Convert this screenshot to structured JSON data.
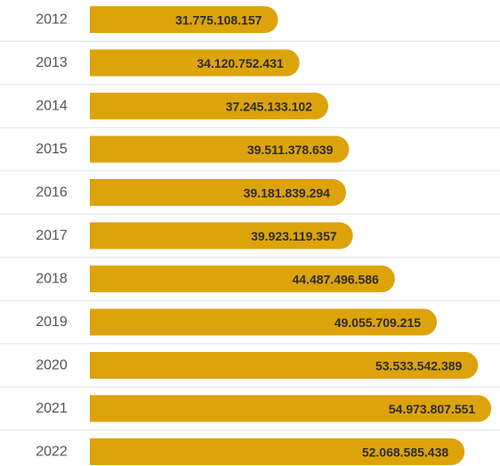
{
  "chart_data": {
    "type": "bar",
    "orientation": "horizontal",
    "categories": [
      "2012",
      "2013",
      "2014",
      "2015",
      "2016",
      "2017",
      "2018",
      "2019",
      "2020",
      "2021",
      "2022"
    ],
    "values": [
      31775108157,
      34120752431,
      37245133102,
      39511378639,
      39181839294,
      39923119357,
      44487496586,
      49055709215,
      53533542389,
      54973807551,
      52068585438
    ],
    "value_labels": [
      "31.775.108.157",
      "34.120.752.431",
      "37.245.133.102",
      "39.511.378.639",
      "39.181.839.294",
      "39.923.119.357",
      "44.487.496.586",
      "49.055.709.215",
      "53.533.542.389",
      "54.973.807.551",
      "52.068.585.438"
    ],
    "title": "",
    "xlabel": "",
    "ylabel": "",
    "grid": "horizontal row separators",
    "colors": {
      "bar": "#DDA30B",
      "label": "#2b2b2b",
      "category": "#555555",
      "separator": "#e3e3e3"
    }
  }
}
